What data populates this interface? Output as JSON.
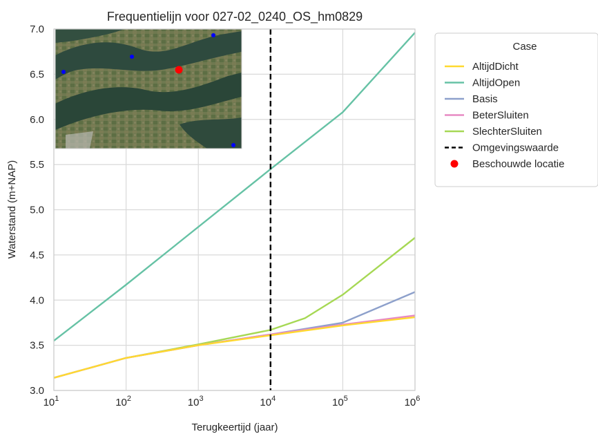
{
  "chart_data": {
    "type": "line",
    "title": "Frequentielijn voor 027-02_0240_OS_hm0829",
    "xlabel": "Terugkeertijd (jaar)",
    "ylabel": "Waterstand (m+NAP)",
    "xscale": "log",
    "xlim": [
      10,
      1000000
    ],
    "ylim": [
      3.0,
      7.0
    ],
    "x_ticks": [
      {
        "value": 10,
        "base": "10",
        "exp": "1"
      },
      {
        "value": 100,
        "base": "10",
        "exp": "2"
      },
      {
        "value": 1000,
        "base": "10",
        "exp": "3"
      },
      {
        "value": 10000,
        "base": "10",
        "exp": "4"
      },
      {
        "value": 100000,
        "base": "10",
        "exp": "5"
      },
      {
        "value": 1000000,
        "base": "10",
        "exp": "6"
      }
    ],
    "y_ticks": [
      "3.0",
      "3.5",
      "4.0",
      "4.5",
      "5.0",
      "5.5",
      "6.0",
      "6.5",
      "7.0"
    ],
    "grid": true,
    "legend": {
      "title": "Case",
      "placement": "outside-right",
      "entries": [
        {
          "label": "AltijdDicht",
          "kind": "line",
          "color": "#ffd92f"
        },
        {
          "label": "AltijdOpen",
          "kind": "line",
          "color": "#66c2a5"
        },
        {
          "label": "Basis",
          "kind": "line",
          "color": "#8da0cb"
        },
        {
          "label": "BeterSluiten",
          "kind": "line",
          "color": "#e78ac3"
        },
        {
          "label": "SlechterSluiten",
          "kind": "line",
          "color": "#a6d854"
        },
        {
          "label": "Omgevingswaarde",
          "kind": "dashed",
          "color": "#000000"
        },
        {
          "label": "Beschouwde locatie",
          "kind": "dot",
          "color": "#ff0000"
        }
      ]
    },
    "series": [
      {
        "name": "AltijdOpen",
        "color": "#66c2a5",
        "x": [
          10,
          100,
          10000,
          100000,
          1000000
        ],
        "y": [
          3.55,
          4.17,
          5.45,
          6.08,
          6.96
        ]
      },
      {
        "name": "SlechterSluiten",
        "color": "#a6d854",
        "x": [
          10,
          100,
          1000,
          10000,
          30000,
          100000,
          1000000
        ],
        "y": [
          3.14,
          3.36,
          3.51,
          3.67,
          3.8,
          4.06,
          4.69
        ]
      },
      {
        "name": "Basis",
        "color": "#8da0cb",
        "x": [
          10,
          100,
          1000,
          10000,
          100000,
          1000000
        ],
        "y": [
          3.14,
          3.36,
          3.5,
          3.62,
          3.75,
          4.09
        ]
      },
      {
        "name": "BeterSluiten",
        "color": "#e78ac3",
        "x": [
          10,
          100,
          1000,
          10000,
          100000,
          1000000
        ],
        "y": [
          3.14,
          3.36,
          3.5,
          3.62,
          3.73,
          3.83
        ]
      },
      {
        "name": "AltijdDicht",
        "color": "#ffd92f",
        "x": [
          10,
          100,
          1000,
          10000,
          100000,
          1000000
        ],
        "y": [
          3.14,
          3.36,
          3.5,
          3.61,
          3.72,
          3.81
        ]
      }
    ],
    "reference_line": {
      "name": "Omgevingswaarde",
      "x": 10000,
      "style": "dashed",
      "color": "#000000"
    },
    "inset_map": {
      "content": "satellite map of estuary area",
      "location_color": "#ff0000",
      "other_points_color": "#0000ff"
    }
  }
}
